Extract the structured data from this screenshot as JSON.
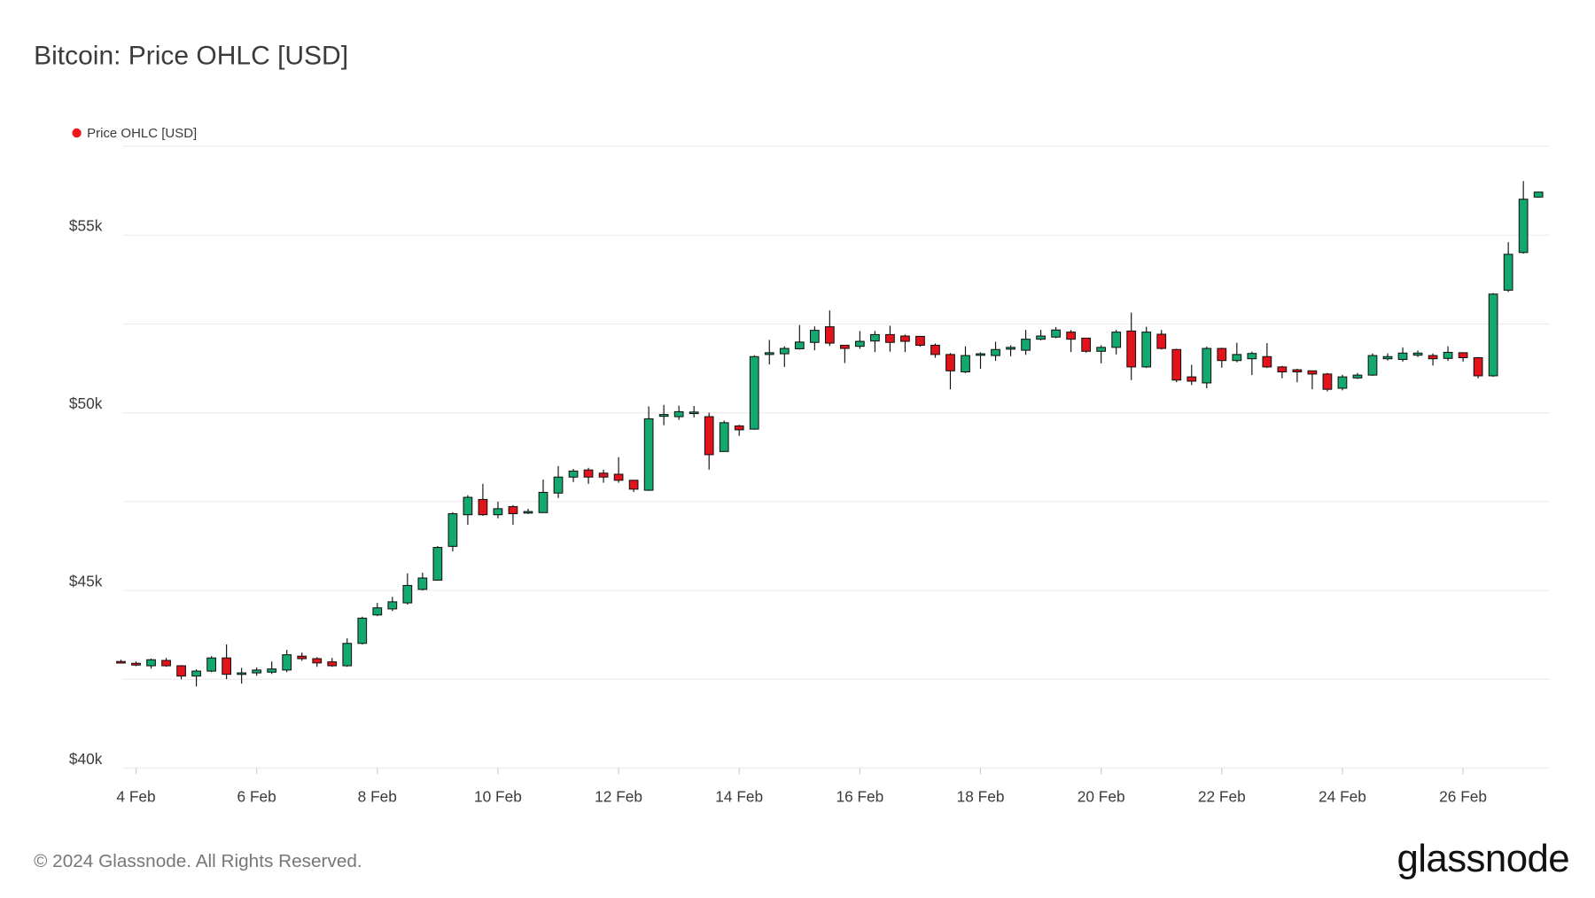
{
  "chart_data": {
    "type": "candlestick",
    "title": "Bitcoin: Price OHLC [USD]",
    "categories": [
      null,
      "4 Feb",
      null,
      null,
      null,
      null,
      null,
      null,
      null,
      "6 Feb",
      null,
      null,
      null,
      null,
      null,
      null,
      null,
      "8 Feb",
      null,
      null,
      null,
      null,
      null,
      null,
      null,
      "10 Feb",
      null,
      null,
      null,
      null,
      null,
      null,
      null,
      "12 Feb",
      null,
      null,
      null,
      null,
      null,
      null,
      null,
      "14 Feb",
      null,
      null,
      null,
      null,
      null,
      null,
      null,
      "16 Feb",
      null,
      null,
      null,
      null,
      null,
      null,
      null,
      "18 Feb",
      null,
      null,
      null,
      null,
      null,
      null,
      null,
      "20 Feb",
      null,
      null,
      null,
      null,
      null,
      null,
      null,
      "22 Feb",
      null,
      null,
      null,
      null,
      null,
      null,
      null,
      "24 Feb",
      null,
      null,
      null,
      null,
      null,
      null,
      null,
      "26 Feb",
      null,
      null,
      null,
      null,
      null
    ],
    "series": [
      {
        "name": "Price OHLC [USD]",
        "color": "#f0161c",
        "open": [
          43000,
          42950,
          42880,
          43030,
          42880,
          42590,
          42730,
          43100,
          42640,
          42680,
          42700,
          42760,
          43150,
          43080,
          42990,
          42880,
          43510,
          44310,
          44480,
          44650,
          45030,
          45290,
          46240,
          47130,
          47560,
          47130,
          47360,
          47180,
          47190,
          47740,
          48190,
          48390,
          48300,
          48270,
          48100,
          47820,
          49900,
          49890,
          50000,
          49890,
          48910,
          49630,
          49540,
          51640,
          51660,
          51800,
          51980,
          52420,
          51900,
          51870,
          52020,
          52200,
          52160,
          52150,
          51900,
          51640,
          51150,
          51620,
          51610,
          51790,
          51760,
          52070,
          52130,
          52270,
          52100,
          51730,
          51840,
          52300,
          51290,
          52210,
          51780,
          51010,
          50840,
          51810,
          51470,
          51520,
          51580,
          51290,
          51210,
          51180,
          51090,
          50690,
          50980,
          51060,
          51520,
          51500,
          51620,
          51610,
          51530,
          51690,
          51550,
          51040,
          53450,
          54510,
          56070
        ],
        "high": [
          43050,
          43000,
          43080,
          43100,
          42900,
          42780,
          43150,
          43480,
          42820,
          42830,
          43000,
          43330,
          43250,
          43120,
          43100,
          43650,
          44260,
          44650,
          44820,
          45480,
          45500,
          46250,
          47200,
          47680,
          48000,
          47500,
          47400,
          47300,
          48120,
          48500,
          48420,
          48450,
          48400,
          48750,
          48100,
          50180,
          50220,
          50200,
          50190,
          50000,
          49780,
          49660,
          51620,
          52050,
          51870,
          52470,
          52430,
          52880,
          51900,
          52300,
          52300,
          52450,
          52200,
          52150,
          51950,
          51680,
          51870,
          51700,
          52000,
          51900,
          52330,
          52330,
          52410,
          52330,
          52100,
          51900,
          52330,
          52820,
          52420,
          52330,
          51800,
          51350,
          51860,
          51830,
          51970,
          51720,
          51960,
          51320,
          51240,
          51180,
          51120,
          51070,
          51120,
          51670,
          51670,
          51840,
          51750,
          51670,
          51870,
          51700,
          51570,
          53370,
          54800,
          56520,
          56220
        ],
        "low": [
          42950,
          42870,
          42800,
          42850,
          42500,
          42300,
          42700,
          42500,
          42380,
          42600,
          42650,
          42700,
          43020,
          42850,
          42850,
          42850,
          43480,
          44280,
          44420,
          44600,
          45000,
          45280,
          46100,
          46850,
          47100,
          47030,
          46850,
          47150,
          47180,
          47600,
          48050,
          48000,
          48030,
          48030,
          47770,
          47800,
          49650,
          49800,
          49870,
          48400,
          48900,
          49350,
          49520,
          51360,
          51290,
          51780,
          51760,
          51880,
          51400,
          51800,
          51710,
          51720,
          51710,
          51860,
          51550,
          50660,
          51120,
          51240,
          51460,
          51590,
          51630,
          52040,
          52100,
          51710,
          51690,
          51390,
          51640,
          50920,
          51260,
          51780,
          50860,
          50780,
          50690,
          51270,
          51420,
          51060,
          51260,
          50970,
          50860,
          50660,
          50600,
          50630,
          50950,
          51040,
          51470,
          51440,
          51570,
          51330,
          51460,
          51440,
          50970,
          51010,
          53400,
          54480,
          56060
        ],
        "close": [
          42980,
          42900,
          43050,
          42880,
          42590,
          42730,
          43100,
          42640,
          42680,
          42760,
          42790,
          43190,
          43080,
          42960,
          42880,
          43510,
          44220,
          44510,
          44680,
          45140,
          45350,
          46210,
          47160,
          47620,
          47130,
          47300,
          47160,
          47220,
          47760,
          48190,
          48360,
          48190,
          48190,
          48100,
          47850,
          49830,
          49950,
          50030,
          50020,
          48820,
          49720,
          49520,
          51580,
          51690,
          51810,
          51990,
          52320,
          51960,
          51810,
          52010,
          52200,
          51980,
          52010,
          51900,
          51640,
          51180,
          51610,
          51660,
          51780,
          51840,
          52070,
          52160,
          52330,
          52070,
          51730,
          51840,
          52270,
          51290,
          52270,
          51810,
          50920,
          50890,
          51810,
          51470,
          51640,
          51670,
          51290,
          51150,
          51150,
          51090,
          50660,
          51010,
          51060,
          51610,
          51580,
          51680,
          51680,
          51520,
          51700,
          51550,
          51040,
          53340,
          54460,
          56010,
          56210
        ]
      }
    ],
    "up_color": "#13a86d",
    "down_color": "#e3131b",
    "ylim": [
      40000,
      57500
    ],
    "yticks": [
      {
        "value": 40000,
        "label": "$40k"
      },
      {
        "value": 45000,
        "label": "$45k"
      },
      {
        "value": 50000,
        "label": "$50k"
      },
      {
        "value": 55000,
        "label": "$55k"
      }
    ],
    "minor_yticks": [
      42500,
      47500,
      52500,
      57500
    ],
    "grid": true,
    "legend": "top-left"
  },
  "footer": {
    "copyright": "© 2024 Glassnode. All Rights Reserved.",
    "logo": "glassnode"
  }
}
